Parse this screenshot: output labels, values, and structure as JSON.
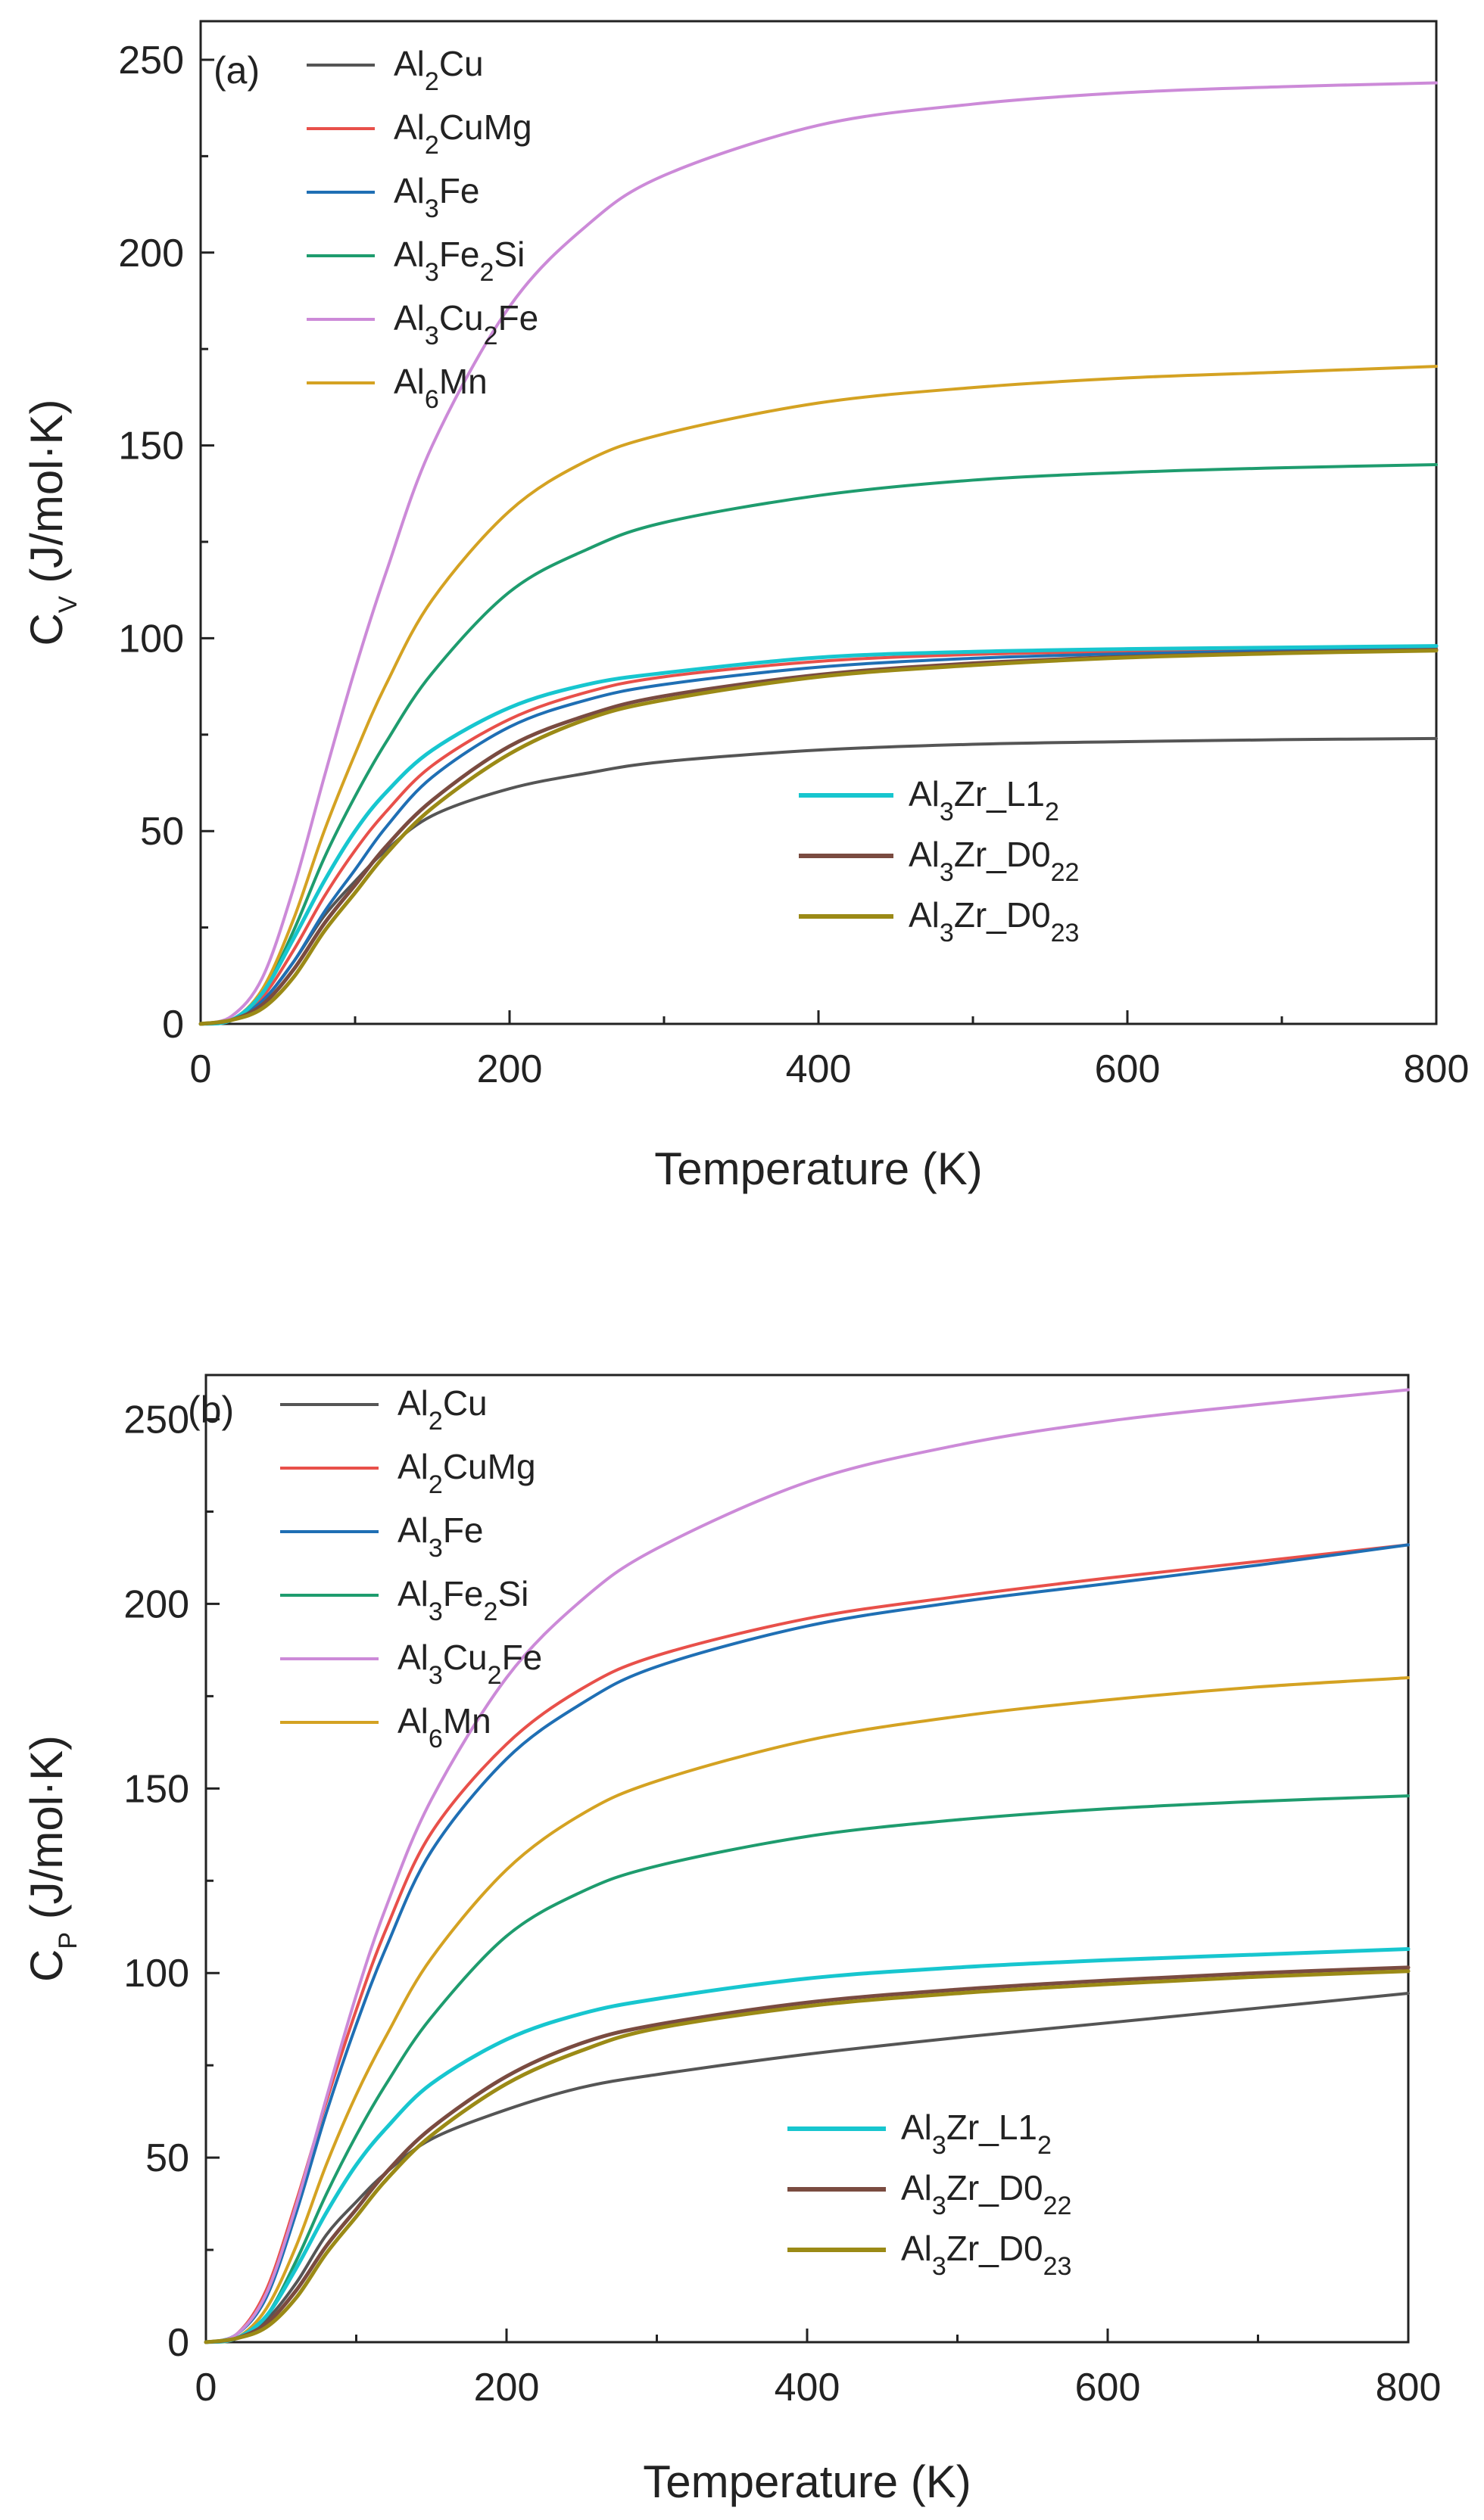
{
  "chart_data": [
    {
      "type": "line",
      "panel_label": "(a)",
      "xlabel": "Temperature (K)",
      "ylabel_main": "C",
      "ylabel_sub": "V",
      "ylabel_tail": " (J/mol·K)",
      "xlim": [
        0,
        800
      ],
      "ylim": [
        0,
        260
      ],
      "xticks": [
        0,
        200,
        400,
        600,
        800
      ],
      "xtick_labels": [
        "0",
        "200",
        "400",
        "600",
        "800"
      ],
      "yticks": [
        0,
        50,
        100,
        150,
        200,
        250
      ],
      "ytick_labels": [
        "0",
        "50",
        "100",
        "150",
        "200",
        "250"
      ],
      "legend_groups": [
        [
          "Al2Cu",
          "Al2CuMg",
          "Al3Fe",
          "Al3Fe2Si",
          "Al3Cu2Fe",
          "Al6Mn"
        ],
        [
          "Al3Zr_L12",
          "Al3Zr_D022",
          "Al3Zr_D023"
        ]
      ],
      "legend_placement": [
        "top-left",
        "lower-right"
      ],
      "x": [
        0,
        20,
        40,
        60,
        80,
        100,
        120,
        150,
        200,
        250,
        300,
        400,
        500,
        600,
        700,
        800
      ],
      "series": [
        {
          "name": "Al2Cu",
          "label_parts": [
            [
              "Al",
              ""
            ],
            [
              "2",
              "sub"
            ],
            [
              "Cu",
              ""
            ]
          ],
          "color": "#555555",
          "values": [
            0,
            1,
            6,
            16,
            28,
            37,
            45,
            54,
            61,
            65,
            68,
            71,
            72.5,
            73.2,
            73.7,
            74
          ]
        },
        {
          "name": "Al2CuMg",
          "label_parts": [
            [
              "Al",
              ""
            ],
            [
              "2",
              "sub"
            ],
            [
              "CuMg",
              ""
            ]
          ],
          "color": "#e8504a",
          "values": [
            0,
            1,
            7,
            19,
            33,
            45,
            55,
            67,
            79,
            86,
            90,
            94,
            95.8,
            96.6,
            97.2,
            97.5
          ]
        },
        {
          "name": "Al3Fe",
          "label_parts": [
            [
              "Al",
              ""
            ],
            [
              "3",
              "sub"
            ],
            [
              "Fe",
              ""
            ]
          ],
          "color": "#1f6fb4",
          "values": [
            0,
            1,
            6,
            16,
            29,
            40,
            51,
            64,
            77,
            84,
            88,
            92.5,
            94.8,
            96,
            96.8,
            97.2
          ]
        },
        {
          "name": "Al3Fe2Si",
          "label_parts": [
            [
              "Al",
              ""
            ],
            [
              "3",
              "sub"
            ],
            [
              "Fe",
              ""
            ],
            [
              "2",
              "sub"
            ],
            [
              "Si",
              ""
            ]
          ],
          "color": "#1e9c6e",
          "values": [
            0,
            1,
            8,
            24,
            43,
            59,
            73,
            91,
            112,
            123,
            130,
            137,
            141,
            143,
            144.2,
            145
          ]
        },
        {
          "name": "Al3Cu2Fe",
          "label_parts": [
            [
              "Al",
              ""
            ],
            [
              "3",
              "sub"
            ],
            [
              "Cu",
              ""
            ],
            [
              "2",
              "sub"
            ],
            [
              "Fe",
              ""
            ]
          ],
          "color": "#cc8ad8",
          "values": [
            0,
            2,
            12,
            35,
            64,
            92,
            117,
            150,
            186,
            207,
            220,
            233,
            238.5,
            241.5,
            243,
            244
          ]
        },
        {
          "name": "Al6Mn",
          "label_parts": [
            [
              "Al",
              ""
            ],
            [
              "6",
              "sub"
            ],
            [
              "Mn",
              ""
            ]
          ],
          "color": "#d4a222",
          "values": [
            0,
            1,
            9,
            27,
            50,
            70,
            88,
            110,
            133,
            146,
            153,
            161,
            165,
            167.5,
            169,
            170.5
          ]
        },
        {
          "name": "Al3Zr_L12",
          "label_parts": [
            [
              "Al",
              ""
            ],
            [
              "3",
              "sub"
            ],
            [
              "Zr_L1",
              ""
            ],
            [
              "2",
              "sub"
            ]
          ],
          "color": "#17c6cf",
          "values": [
            0,
            1,
            8,
            22,
            37,
            50,
            60,
            71,
            82,
            88,
            91,
            95,
            96.5,
            97.2,
            97.6,
            98
          ]
        },
        {
          "name": "Al3Zr_D022",
          "label_parts": [
            [
              "Al",
              ""
            ],
            [
              "3",
              "sub"
            ],
            [
              "Zr_D0",
              ""
            ],
            [
              "22",
              "sub"
            ]
          ],
          "color": "#7a4b40",
          "values": [
            0,
            1,
            5,
            14,
            26,
            36,
            46,
            58,
            72,
            80,
            85,
            90.5,
            93.5,
            95.2,
            96.3,
            97
          ]
        },
        {
          "name": "Al3Zr_D023",
          "label_parts": [
            [
              "Al",
              ""
            ],
            [
              "3",
              "sub"
            ],
            [
              "Zr_D0",
              ""
            ],
            [
              "23",
              "sub"
            ]
          ],
          "color": "#9b8a16",
          "values": [
            0,
            1,
            4,
            12,
            24,
            34,
            44,
            56,
            70,
            79,
            84,
            90,
            93,
            95,
            96.1,
            96.8
          ]
        }
      ]
    },
    {
      "type": "line",
      "panel_label": "(b)",
      "xlabel": "Temperature (K)",
      "ylabel_main": "C",
      "ylabel_sub": "P",
      "ylabel_tail": " (J/mol·K)",
      "xlim": [
        0,
        800
      ],
      "ylim": [
        0,
        262
      ],
      "xticks": [
        0,
        200,
        400,
        600,
        800
      ],
      "xtick_labels": [
        "0",
        "200",
        "400",
        "600",
        "800"
      ],
      "yticks": [
        0,
        50,
        100,
        150,
        200,
        250
      ],
      "ytick_labels": [
        "0",
        "50",
        "100",
        "150",
        "200",
        "250"
      ],
      "legend_groups": [
        [
          "Al2Cu",
          "Al2CuMg",
          "Al3Fe",
          "Al3Fe2Si",
          "Al3Cu2Fe",
          "Al6Mn"
        ],
        [
          "Al3Zr_L12",
          "Al3Zr_D022",
          "Al3Zr_D023"
        ]
      ],
      "legend_placement": [
        "top-left",
        "lower-right"
      ],
      "x": [
        0,
        20,
        40,
        60,
        80,
        100,
        120,
        150,
        200,
        250,
        300,
        400,
        500,
        600,
        700,
        800
      ],
      "series": [
        {
          "name": "Al2Cu",
          "label_parts": [
            [
              "Al",
              ""
            ],
            [
              "2",
              "sub"
            ],
            [
              "Cu",
              ""
            ]
          ],
          "color": "#555555",
          "values": [
            0,
            1,
            6,
            16,
            29,
            38,
            46,
            55,
            63,
            69,
            72.5,
            78,
            82.5,
            86.5,
            90.5,
            94.5
          ]
        },
        {
          "name": "Al2CuMg",
          "label_parts": [
            [
              "Al",
              ""
            ],
            [
              "2",
              "sub"
            ],
            [
              "CuMg",
              ""
            ]
          ],
          "color": "#e8504a",
          "values": [
            0,
            2,
            14,
            38,
            65,
            90,
            112,
            138,
            162,
            177,
            186,
            196,
            202,
            207,
            211.5,
            216
          ]
        },
        {
          "name": "Al3Fe",
          "label_parts": [
            [
              "Al",
              ""
            ],
            [
              "3",
              "sub"
            ],
            [
              "Fe",
              ""
            ]
          ],
          "color": "#1f6fb4",
          "values": [
            0,
            2,
            12,
            35,
            62,
            86,
            107,
            133,
            158,
            173,
            183,
            194,
            200.5,
            205.5,
            210.5,
            216
          ]
        },
        {
          "name": "Al3Fe2Si",
          "label_parts": [
            [
              "Al",
              ""
            ],
            [
              "3",
              "sub"
            ],
            [
              "Fe",
              ""
            ],
            [
              "2",
              "sub"
            ],
            [
              "Si",
              ""
            ]
          ],
          "color": "#1e9c6e",
          "values": [
            0,
            1,
            7,
            22,
            40,
            56,
            70,
            88,
            110,
            122,
            129,
            137,
            141.5,
            144.5,
            146.5,
            148
          ]
        },
        {
          "name": "Al3Cu2Fe",
          "label_parts": [
            [
              "Al",
              ""
            ],
            [
              "3",
              "sub"
            ],
            [
              "Cu",
              ""
            ],
            [
              "2",
              "sub"
            ],
            [
              "Fe",
              ""
            ]
          ],
          "color": "#cc8ad8",
          "values": [
            0,
            2,
            13,
            37,
            66,
            94,
            118,
            147,
            180,
            201,
            215,
            233,
            243,
            249.5,
            254,
            258
          ]
        },
        {
          "name": "Al6Mn",
          "label_parts": [
            [
              "Al",
              ""
            ],
            [
              "6",
              "sub"
            ],
            [
              "Mn",
              ""
            ]
          ],
          "color": "#d4a222",
          "values": [
            0,
            1,
            9,
            26,
            48,
            67,
            83,
            104,
            128,
            143,
            152,
            163,
            169.5,
            174,
            177.5,
            180
          ]
        },
        {
          "name": "Al3Zr_L12",
          "label_parts": [
            [
              "Al",
              ""
            ],
            [
              "3",
              "sub"
            ],
            [
              "Zr_L1",
              ""
            ],
            [
              "2",
              "sub"
            ]
          ],
          "color": "#17c6cf",
          "values": [
            0,
            1,
            7,
            20,
            35,
            48,
            58,
            70,
            82,
            89,
            93,
            98.5,
            101.5,
            103.5,
            105,
            106.5
          ]
        },
        {
          "name": "Al3Zr_D022",
          "label_parts": [
            [
              "Al",
              ""
            ],
            [
              "3",
              "sub"
            ],
            [
              "Zr_D0",
              ""
            ],
            [
              "22",
              "sub"
            ]
          ],
          "color": "#7a4b40",
          "values": [
            0,
            1,
            5,
            14,
            26,
            36,
            46,
            58,
            72,
            81,
            86,
            92,
            95.5,
            98,
            100,
            101.5
          ]
        },
        {
          "name": "Al3Zr_D023",
          "label_parts": [
            [
              "Al",
              ""
            ],
            [
              "3",
              "sub"
            ],
            [
              "Zr_D0",
              ""
            ],
            [
              "23",
              "sub"
            ]
          ],
          "color": "#9b8a16",
          "values": [
            0,
            1,
            4,
            12,
            24,
            34,
            44,
            56,
            70,
            79,
            85,
            91,
            94.5,
            97,
            99,
            100.5
          ]
        }
      ]
    }
  ]
}
